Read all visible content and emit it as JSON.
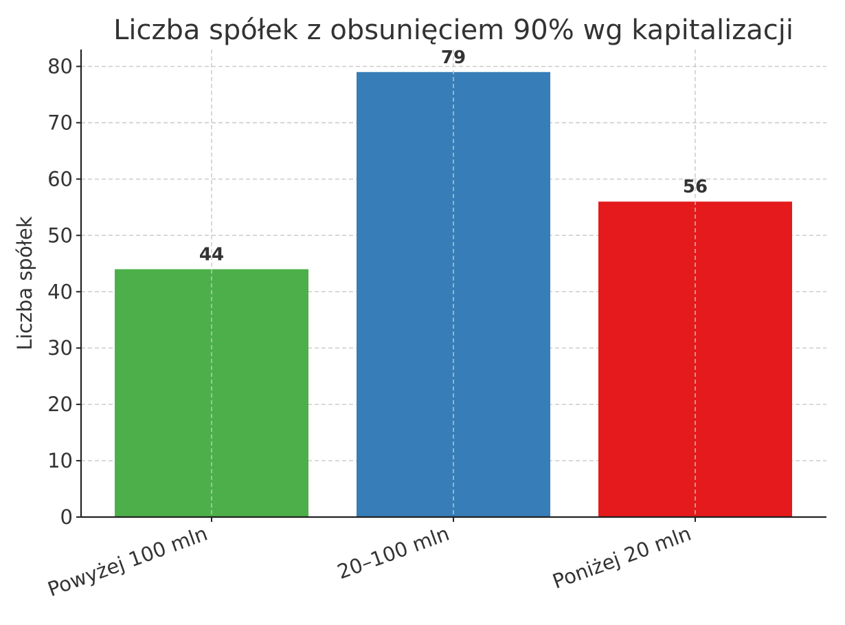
{
  "chart_data": {
    "type": "bar",
    "title": "Liczba spółek z obsunięciem 90% wg kapitalizacji",
    "xlabel": "",
    "ylabel": "Liczba spółek",
    "categories": [
      "Powyżej 100 mln",
      "20–100 mln",
      "Poniżej 20 mln"
    ],
    "values": [
      44,
      79,
      56
    ],
    "colors": [
      "#4daf4a",
      "#377eb8",
      "#e41a1c"
    ],
    "ylim": [
      0,
      83
    ],
    "yticks": [
      0,
      10,
      20,
      30,
      40,
      50,
      60,
      70,
      80
    ],
    "grid": true,
    "data_labels": true
  }
}
